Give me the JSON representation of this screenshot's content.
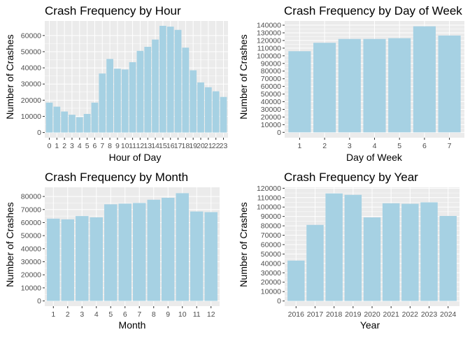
{
  "chart_data": [
    {
      "type": "bar",
      "title": "Crash Frequency by Hour",
      "xlabel": "Hour of Day",
      "ylabel": "Number of Crashes",
      "categories": [
        "0",
        "1",
        "2",
        "3",
        "4",
        "5",
        "6",
        "7",
        "8",
        "9",
        "10",
        "11",
        "12",
        "13",
        "14",
        "15",
        "16",
        "17",
        "18",
        "19",
        "20",
        "21",
        "22",
        "23"
      ],
      "values": [
        18500,
        16000,
        13000,
        11000,
        9500,
        11500,
        18500,
        36500,
        45500,
        39500,
        39000,
        43500,
        50500,
        53000,
        57500,
        66000,
        65500,
        63500,
        52500,
        38500,
        31000,
        28000,
        25500,
        22000
      ],
      "ylim": [
        -3200,
        69000
      ],
      "yticks": [
        0,
        10000,
        20000,
        30000,
        40000,
        50000,
        60000
      ],
      "grid": true,
      "bar_color": "#a6d1e3"
    },
    {
      "type": "bar",
      "title": "Crash Frequency by Day of Week",
      "xlabel": "Day of Week",
      "ylabel": "Number of Crashes",
      "categories": [
        "1",
        "2",
        "3",
        "4",
        "5",
        "6",
        "7"
      ],
      "values": [
        106000,
        117000,
        122000,
        122000,
        123000,
        138500,
        126500
      ],
      "ylim": [
        -7000,
        145500
      ],
      "yticks": [
        0,
        10000,
        20000,
        30000,
        40000,
        50000,
        60000,
        70000,
        80000,
        90000,
        100000,
        110000,
        120000,
        130000,
        140000
      ],
      "grid": true,
      "bar_color": "#a6d1e3"
    },
    {
      "type": "bar",
      "title": "Crash Frequency by Month",
      "xlabel": "Month",
      "ylabel": "Number of Crashes",
      "categories": [
        "1",
        "2",
        "3",
        "4",
        "5",
        "6",
        "7",
        "8",
        "9",
        "10",
        "11",
        "12"
      ],
      "values": [
        63000,
        62500,
        65000,
        64000,
        74000,
        74500,
        75000,
        77500,
        79000,
        82500,
        68500,
        68000
      ],
      "ylim": [
        -4000,
        87000
      ],
      "yticks": [
        0,
        10000,
        20000,
        30000,
        40000,
        50000,
        60000,
        70000,
        80000
      ],
      "grid": true,
      "bar_color": "#a6d1e3"
    },
    {
      "type": "bar",
      "title": "Crash Frequency by Year",
      "xlabel": "Year",
      "ylabel": "Number of Crashes",
      "categories": [
        "2016",
        "2017",
        "2018",
        "2019",
        "2020",
        "2021",
        "2022",
        "2023",
        "2024"
      ],
      "values": [
        43000,
        81000,
        114500,
        113000,
        89000,
        104000,
        103500,
        105000,
        90500
      ],
      "ylim": [
        -5500,
        121000
      ],
      "yticks": [
        0,
        10000,
        20000,
        30000,
        40000,
        50000,
        60000,
        70000,
        80000,
        90000,
        100000,
        110000,
        120000
      ],
      "grid": true,
      "bar_color": "#a6d1e3"
    }
  ]
}
